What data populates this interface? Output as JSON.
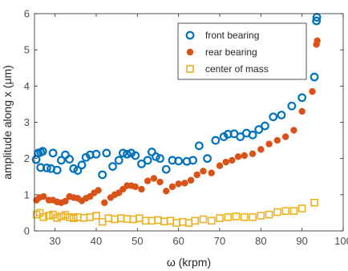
{
  "chart_data": {
    "type": "scatter",
    "title": "",
    "xlabel": "ω (krpm)",
    "ylabel": "amplitude along x (μm)",
    "xlim": [
      25,
      100
    ],
    "ylim": [
      0,
      6
    ],
    "xticks": [
      30,
      40,
      50,
      60,
      70,
      80,
      90,
      100
    ],
    "yticks": [
      0,
      1,
      2,
      3,
      4,
      5,
      6
    ],
    "grid": false,
    "legend_position": "top-right",
    "series": [
      {
        "name": "front bearing",
        "marker": "open-circle",
        "color": "#0072bd",
        "points": [
          [
            25.4,
            1.97
          ],
          [
            25.9,
            2.15
          ],
          [
            26.5,
            2.17
          ],
          [
            27.0,
            2.2
          ],
          [
            26.5,
            1.75
          ],
          [
            28.0,
            1.74
          ],
          [
            29.0,
            1.72
          ],
          [
            29.5,
            2.15
          ],
          [
            30.5,
            1.68
          ],
          [
            31.5,
            1.95
          ],
          [
            32.5,
            2.1
          ],
          [
            33.5,
            1.98
          ],
          [
            34.5,
            1.72
          ],
          [
            35.5,
            1.67
          ],
          [
            36.5,
            1.82
          ],
          [
            37.5,
            2.03
          ],
          [
            38.5,
            2.1
          ],
          [
            40.0,
            2.12
          ],
          [
            41.5,
            1.55
          ],
          [
            42.5,
            2.15
          ],
          [
            44.0,
            1.78
          ],
          [
            45.5,
            1.95
          ],
          [
            46.5,
            2.15
          ],
          [
            47.5,
            2.12
          ],
          [
            48.5,
            2.15
          ],
          [
            49.5,
            2.08
          ],
          [
            51.0,
            1.85
          ],
          [
            52.5,
            1.95
          ],
          [
            53.5,
            2.18
          ],
          [
            54.5,
            2.05
          ],
          [
            55.5,
            2.0
          ],
          [
            57.0,
            1.7
          ],
          [
            58.5,
            1.95
          ],
          [
            60.0,
            1.93
          ],
          [
            62.0,
            1.92
          ],
          [
            63.5,
            1.95
          ],
          [
            65.0,
            2.35
          ],
          [
            67.0,
            2.0
          ],
          [
            69.0,
            2.5
          ],
          [
            71.0,
            2.6
          ],
          [
            72.0,
            2.67
          ],
          [
            73.5,
            2.68
          ],
          [
            75.0,
            2.6
          ],
          [
            76.5,
            2.7
          ],
          [
            78.0,
            2.65
          ],
          [
            79.5,
            2.8
          ],
          [
            81.0,
            2.9
          ],
          [
            83.0,
            3.15
          ],
          [
            85.0,
            3.2
          ],
          [
            87.5,
            3.45
          ],
          [
            90.0,
            3.68
          ],
          [
            93.0,
            4.25
          ],
          [
            93.5,
            5.8
          ],
          [
            93.6,
            5.9
          ]
        ]
      },
      {
        "name": "rear bearing",
        "marker": "filled-circle",
        "color": "#d95319",
        "points": [
          [
            25.5,
            0.85
          ],
          [
            26.2,
            0.92
          ],
          [
            27.2,
            0.95
          ],
          [
            28.5,
            0.85
          ],
          [
            29.5,
            0.85
          ],
          [
            30.5,
            0.8
          ],
          [
            31.5,
            0.78
          ],
          [
            32.5,
            0.82
          ],
          [
            33.5,
            0.95
          ],
          [
            34.5,
            0.92
          ],
          [
            35.5,
            0.9
          ],
          [
            36.5,
            0.83
          ],
          [
            37.5,
            0.9
          ],
          [
            38.5,
            0.95
          ],
          [
            39.5,
            1.05
          ],
          [
            40.5,
            1.12
          ],
          [
            42.0,
            0.78
          ],
          [
            43.5,
            0.92
          ],
          [
            44.5,
            1.0
          ],
          [
            45.5,
            1.05
          ],
          [
            46.5,
            1.15
          ],
          [
            47.5,
            1.25
          ],
          [
            48.5,
            1.25
          ],
          [
            49.5,
            1.22
          ],
          [
            51.0,
            1.15
          ],
          [
            52.5,
            1.38
          ],
          [
            54.0,
            1.45
          ],
          [
            55.5,
            1.35
          ],
          [
            57.0,
            1.1
          ],
          [
            58.5,
            1.22
          ],
          [
            60.0,
            1.3
          ],
          [
            61.5,
            1.32
          ],
          [
            63.0,
            1.4
          ],
          [
            64.5,
            1.55
          ],
          [
            66.0,
            1.65
          ],
          [
            68.0,
            1.6
          ],
          [
            70.0,
            1.8
          ],
          [
            71.5,
            1.9
          ],
          [
            73.0,
            1.95
          ],
          [
            74.5,
            2.05
          ],
          [
            76.0,
            2.08
          ],
          [
            78.0,
            2.13
          ],
          [
            80.0,
            2.25
          ],
          [
            82.0,
            2.4
          ],
          [
            84.0,
            2.5
          ],
          [
            86.0,
            2.6
          ],
          [
            88.0,
            2.78
          ],
          [
            90.0,
            3.3
          ],
          [
            92.5,
            3.85
          ],
          [
            93.5,
            5.15
          ],
          [
            93.7,
            5.25
          ]
        ]
      },
      {
        "name": "center of mass",
        "marker": "open-square",
        "color": "#edb120",
        "points": [
          [
            25.5,
            0.45
          ],
          [
            26.3,
            0.5
          ],
          [
            27.2,
            0.38
          ],
          [
            28.5,
            0.42
          ],
          [
            29.5,
            0.45
          ],
          [
            30.5,
            0.36
          ],
          [
            31.5,
            0.4
          ],
          [
            32.5,
            0.44
          ],
          [
            33.5,
            0.38
          ],
          [
            34.5,
            0.35
          ],
          [
            35.5,
            0.38
          ],
          [
            37.0,
            0.36
          ],
          [
            38.5,
            0.38
          ],
          [
            40.0,
            0.42
          ],
          [
            41.5,
            0.25
          ],
          [
            43.0,
            0.35
          ],
          [
            44.5,
            0.32
          ],
          [
            46.0,
            0.35
          ],
          [
            47.5,
            0.33
          ],
          [
            49.0,
            0.32
          ],
          [
            50.5,
            0.35
          ],
          [
            52.0,
            0.28
          ],
          [
            53.5,
            0.28
          ],
          [
            55.0,
            0.3
          ],
          [
            56.5,
            0.26
          ],
          [
            58.0,
            0.28
          ],
          [
            59.5,
            0.22
          ],
          [
            61.0,
            0.25
          ],
          [
            62.5,
            0.22
          ],
          [
            64.0,
            0.28
          ],
          [
            66.0,
            0.32
          ],
          [
            68.0,
            0.28
          ],
          [
            70.0,
            0.35
          ],
          [
            72.0,
            0.38
          ],
          [
            74.0,
            0.4
          ],
          [
            76.0,
            0.38
          ],
          [
            78.0,
            0.38
          ],
          [
            80.0,
            0.42
          ],
          [
            82.0,
            0.45
          ],
          [
            84.0,
            0.52
          ],
          [
            86.0,
            0.55
          ],
          [
            88.0,
            0.55
          ],
          [
            90.0,
            0.62
          ],
          [
            93.0,
            0.78
          ]
        ]
      }
    ]
  }
}
